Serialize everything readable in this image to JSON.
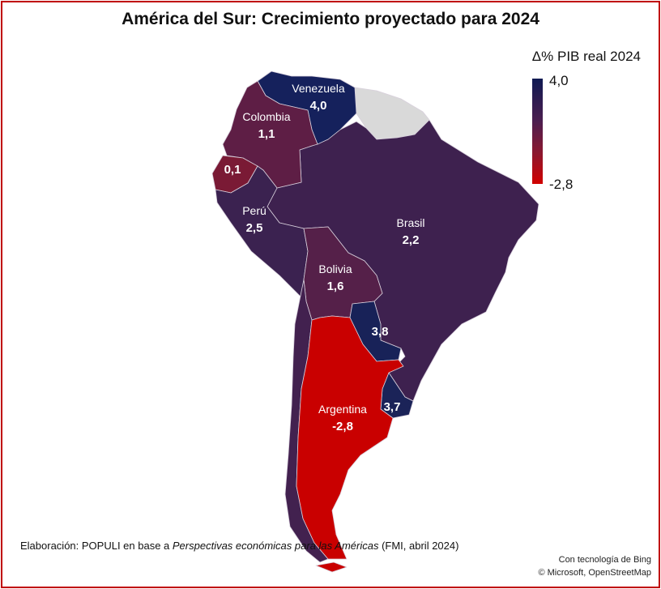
{
  "title": "América del Sur: Crecimiento proyectado para 2024",
  "legend": {
    "title": "Δ% PIB real 2024",
    "max_label": "4,0",
    "min_label": "-2,8",
    "max_color": "#0f1a52",
    "min_color": "#d10000"
  },
  "no_data_color": "#d9d9d9",
  "countries": {
    "venezuela": {
      "name": "Venezuela",
      "value": "4,0",
      "color": "#15215c"
    },
    "colombia": {
      "name": "Colombia",
      "value": "1,1",
      "color": "#5e1e45"
    },
    "ecuador": {
      "name": "",
      "value": "0,1",
      "color": "#7a1a35"
    },
    "peru": {
      "name": "Perú",
      "value": "2,5",
      "color": "#3b2250"
    },
    "brasil": {
      "name": "Brasil",
      "value": "2,2",
      "color": "#3e214f"
    },
    "bolivia": {
      "name": "Bolivia",
      "value": "1,6",
      "color": "#552049"
    },
    "paraguay": {
      "name": "",
      "value": "3,8",
      "color": "#182258"
    },
    "uruguay": {
      "name": "",
      "value": "3,7",
      "color": "#1b2358"
    },
    "argentina": {
      "name": "Argentina",
      "value": "-2,8",
      "color": "#c90000"
    },
    "chile": {
      "name": "",
      "value": "",
      "color": "#42214f"
    }
  },
  "source": {
    "prefix": "Elaboración: POPULI en base a ",
    "italic": "Perspectivas económicas para las Américas",
    "suffix": " (FMI, abril 2024)"
  },
  "attribution": {
    "line1": "Con tecnología de Bing",
    "line2": "© Microsoft, OpenStreetMap"
  }
}
